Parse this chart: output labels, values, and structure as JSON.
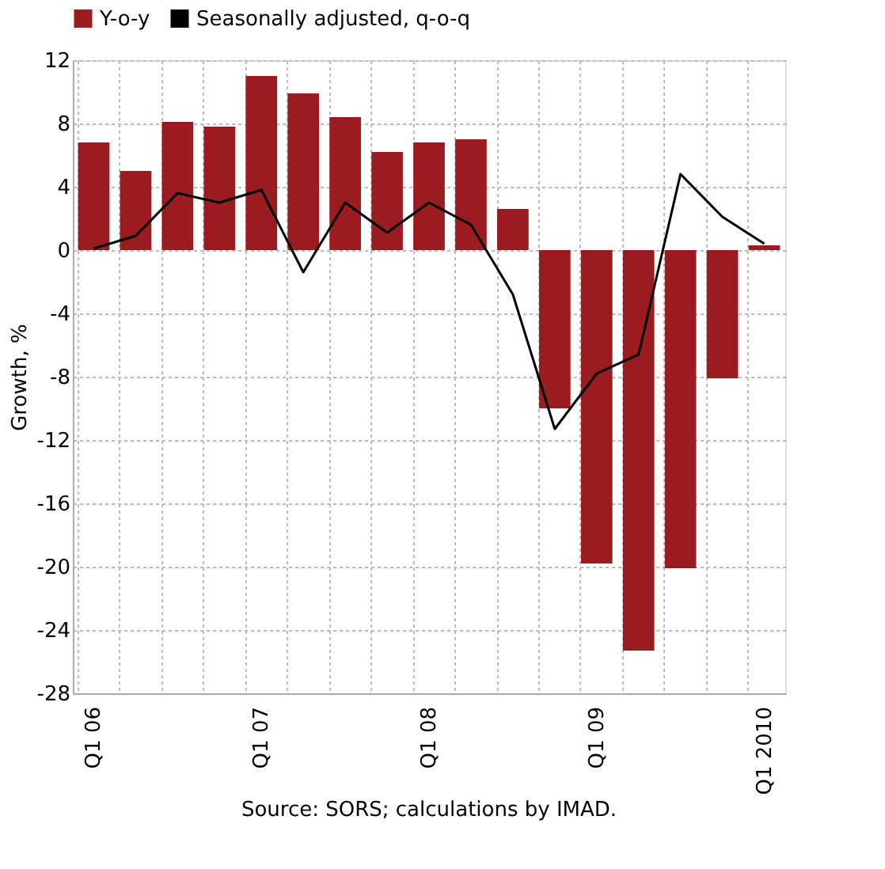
{
  "chart_data": {
    "type": "bar",
    "ylabel": "Growth, %",
    "categories": [
      "Q1 06",
      null,
      null,
      null,
      "Q1 07",
      null,
      null,
      null,
      "Q1 08",
      null,
      null,
      null,
      "Q1 09",
      null,
      null,
      null,
      "Q1 2010"
    ],
    "series": [
      {
        "name": "Y-o-y",
        "color": "#9b1c20",
        "values": [
          6.8,
          5.0,
          8.1,
          7.8,
          11.0,
          9.9,
          8.4,
          6.2,
          6.8,
          7.0,
          2.6,
          -10.0,
          -19.8,
          -25.3,
          -20.1,
          -8.1,
          0.3
        ]
      },
      {
        "name": "Seasonally adjusted, q-o-q",
        "type": "line",
        "color": "#000000",
        "values": [
          0.1,
          0.9,
          3.6,
          3.0,
          3.8,
          -1.4,
          3.0,
          1.1,
          3.0,
          1.6,
          -2.8,
          -11.3,
          -7.8,
          -6.6,
          4.8,
          2.1,
          0.4
        ]
      }
    ],
    "ylim": [
      -28,
      12
    ],
    "yticks": [
      -28,
      -24,
      -20,
      -16,
      -12,
      -8,
      -4,
      0,
      4,
      8,
      12
    ],
    "grid": true,
    "legend": "top",
    "annotations": [
      "Source: SORS; calculations by IMAD."
    ]
  }
}
